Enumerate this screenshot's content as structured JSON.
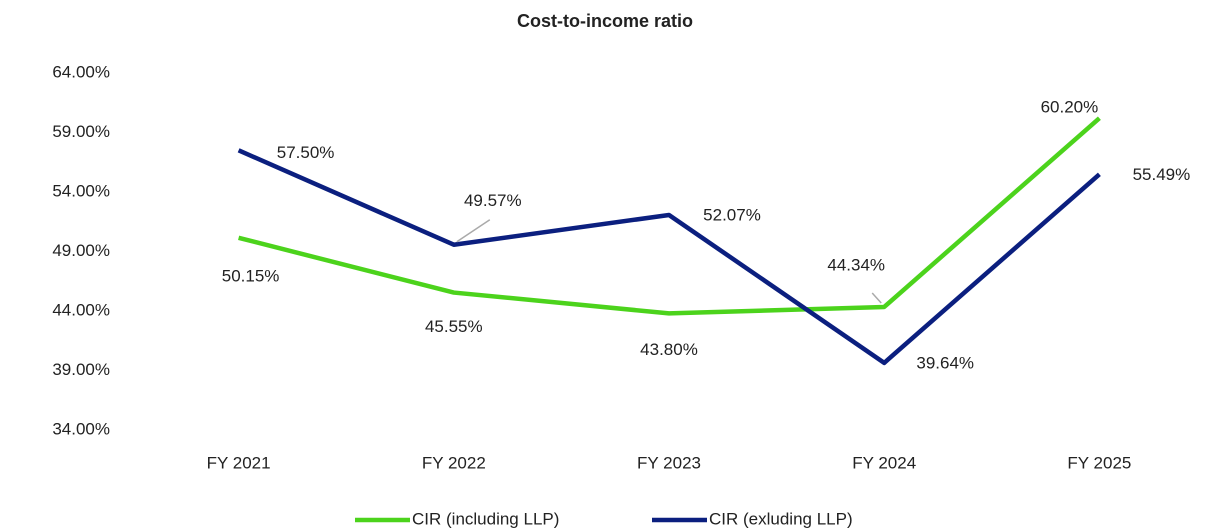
{
  "chart_data": {
    "type": "line",
    "title": "Cost-to-income ratio",
    "categories": [
      "FY 2021",
      "FY 2022",
      "FY 2023",
      "FY 2024",
      "FY 2025"
    ],
    "series": [
      {
        "name": "CIR (including LLP)",
        "color": "#4cd31c",
        "values": [
          50.15,
          45.55,
          43.8,
          44.34,
          60.2
        ],
        "value_labels": [
          "50.15%",
          "45.55%",
          "43.80%",
          "44.34%",
          "60.20%"
        ]
      },
      {
        "name": "CIR (exluding LLP)",
        "color": "#0b1f7f",
        "values": [
          57.5,
          49.57,
          52.07,
          39.64,
          55.49
        ],
        "value_labels": [
          "57.50%",
          "49.57%",
          "52.07%",
          "39.64%",
          "55.49%"
        ]
      }
    ],
    "ylim": [
      34,
      64
    ],
    "yticks": [
      {
        "value": 34,
        "label": "34.00%"
      },
      {
        "value": 39,
        "label": "39.00%"
      },
      {
        "value": 44,
        "label": "44.00%"
      },
      {
        "value": 49,
        "label": "49.00%"
      },
      {
        "value": 54,
        "label": "54.00%"
      },
      {
        "value": 59,
        "label": "59.00%"
      },
      {
        "value": 64,
        "label": "64.00%"
      }
    ],
    "grid": false,
    "legend": "bottom"
  }
}
